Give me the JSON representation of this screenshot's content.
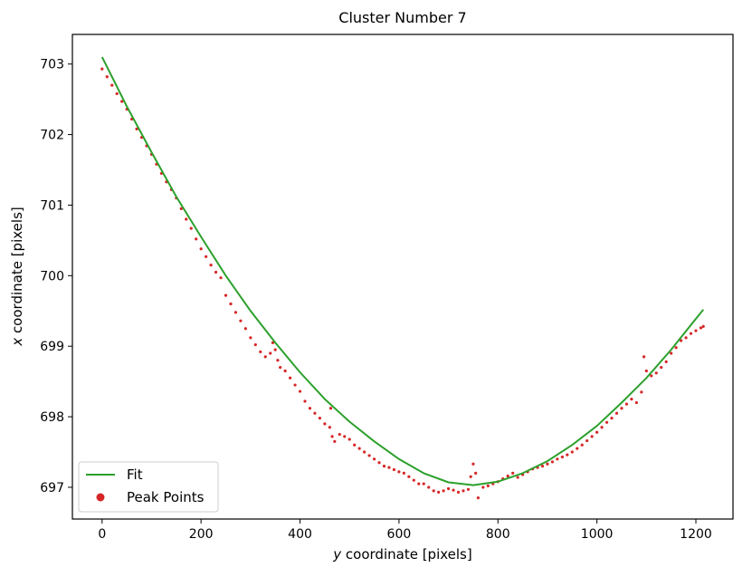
{
  "chart_data": {
    "type": "scatter",
    "title": "Cluster Number 7",
    "xlabel": "y coordinate [pixels]",
    "xlabel_var": "y",
    "xlabel_rest": " coordinate [pixels]",
    "ylabel": "x coordinate [pixels]",
    "ylabel_var": "x",
    "ylabel_rest": " coordinate [pixels]",
    "xlim": [
      -60,
      1275
    ],
    "ylim": [
      696.55,
      703.42
    ],
    "xticks": [
      0,
      200,
      400,
      600,
      800,
      1000,
      1200
    ],
    "yticks": [
      697,
      698,
      699,
      700,
      701,
      702,
      703
    ],
    "grid": false,
    "legend_position": "lower left",
    "colors": {
      "fit": "#2ca02c",
      "points": "#d62728"
    },
    "series": [
      {
        "name": "Fit",
        "kind": "line",
        "x": [
          0,
          50,
          100,
          150,
          200,
          250,
          300,
          350,
          400,
          450,
          500,
          550,
          600,
          650,
          700,
          750,
          800,
          850,
          900,
          950,
          1000,
          1050,
          1100,
          1150,
          1215
        ],
        "y": [
          703.1,
          702.4,
          701.75,
          701.12,
          700.55,
          700.0,
          699.5,
          699.05,
          698.63,
          698.25,
          697.93,
          697.65,
          697.4,
          697.2,
          697.07,
          697.03,
          697.08,
          697.2,
          697.37,
          697.6,
          697.87,
          698.2,
          698.55,
          698.95,
          699.52
        ]
      },
      {
        "name": "Peak Points",
        "kind": "scatter",
        "x": [
          0,
          10,
          20,
          30,
          40,
          50,
          60,
          70,
          80,
          90,
          100,
          110,
          120,
          130,
          140,
          150,
          160,
          170,
          180,
          190,
          200,
          210,
          220,
          230,
          240,
          250,
          260,
          270,
          280,
          290,
          300,
          310,
          320,
          330,
          340,
          345,
          350,
          355,
          360,
          370,
          380,
          390,
          400,
          410,
          420,
          430,
          440,
          450,
          460,
          462,
          465,
          470,
          480,
          490,
          500,
          510,
          520,
          530,
          540,
          550,
          560,
          570,
          580,
          590,
          600,
          610,
          620,
          630,
          640,
          650,
          660,
          670,
          680,
          690,
          700,
          710,
          720,
          730,
          740,
          745,
          750,
          755,
          760,
          770,
          780,
          790,
          800,
          810,
          820,
          830,
          840,
          850,
          860,
          870,
          880,
          890,
          900,
          910,
          920,
          930,
          940,
          950,
          960,
          970,
          980,
          990,
          1000,
          1010,
          1020,
          1030,
          1040,
          1050,
          1060,
          1070,
          1080,
          1090,
          1095,
          1100,
          1110,
          1120,
          1130,
          1140,
          1150,
          1160,
          1170,
          1180,
          1190,
          1200,
          1210,
          1215
        ],
        "y": [
          702.93,
          702.82,
          702.7,
          702.58,
          702.47,
          702.36,
          702.22,
          702.08,
          701.96,
          701.84,
          701.72,
          701.58,
          701.45,
          701.33,
          701.22,
          701.1,
          700.95,
          700.8,
          700.67,
          700.52,
          700.38,
          700.27,
          700.15,
          700.05,
          699.97,
          699.72,
          699.6,
          699.48,
          699.36,
          699.25,
          699.12,
          699.02,
          698.92,
          698.85,
          698.9,
          699.05,
          698.95,
          698.8,
          698.7,
          698.65,
          698.55,
          698.45,
          698.36,
          698.22,
          698.12,
          698.05,
          697.98,
          697.9,
          697.85,
          698.12,
          697.72,
          697.65,
          697.75,
          697.72,
          697.68,
          697.6,
          697.55,
          697.5,
          697.45,
          697.4,
          697.35,
          697.3,
          697.28,
          697.25,
          697.22,
          697.2,
          697.15,
          697.1,
          697.05,
          697.05,
          697.0,
          696.95,
          696.93,
          696.95,
          696.98,
          696.96,
          696.93,
          696.95,
          696.97,
          697.15,
          697.33,
          697.2,
          696.85,
          697.0,
          697.02,
          697.05,
          697.08,
          697.12,
          697.16,
          697.2,
          697.14,
          697.18,
          697.22,
          697.26,
          697.28,
          697.3,
          697.33,
          697.36,
          697.4,
          697.43,
          697.46,
          697.5,
          697.55,
          697.6,
          697.66,
          697.72,
          697.78,
          697.85,
          697.92,
          697.98,
          698.05,
          698.12,
          698.18,
          698.25,
          698.2,
          698.35,
          698.85,
          698.65,
          698.58,
          698.62,
          698.7,
          698.78,
          698.9,
          698.98,
          699.08,
          699.12,
          699.18,
          699.22,
          699.26,
          699.28
        ]
      }
    ]
  }
}
